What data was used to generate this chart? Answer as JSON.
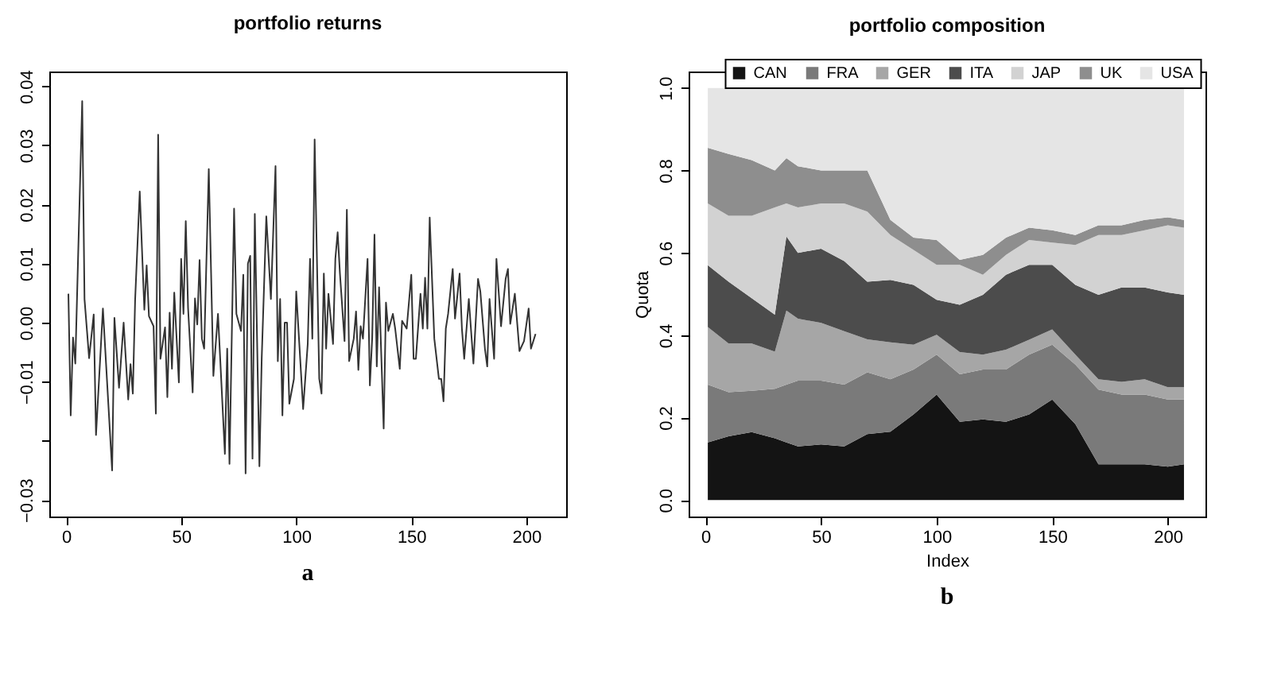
{
  "chart_data": [
    {
      "type": "line",
      "title": "portfolio returns",
      "annotations": [
        "a"
      ],
      "legend": false,
      "marker": "none",
      "line_style": "solid",
      "x": [
        1,
        2,
        3,
        4,
        7,
        8,
        10,
        12,
        13,
        16,
        20,
        21,
        23,
        25,
        27,
        28,
        29,
        30,
        32,
        34,
        35,
        36,
        38,
        39,
        40,
        41,
        43,
        44,
        45,
        46,
        47,
        49,
        50,
        51,
        52,
        53,
        55,
        56,
        57,
        58,
        59,
        60,
        62,
        64,
        66,
        69,
        70,
        71,
        73,
        74,
        76,
        77,
        78,
        79,
        80,
        81,
        82,
        84,
        85,
        87,
        89,
        91,
        92,
        93,
        94,
        95,
        96,
        97,
        99,
        100,
        103,
        105,
        106,
        107,
        108,
        110,
        111,
        112,
        113,
        114,
        116,
        117,
        118,
        119,
        121,
        122,
        123,
        125,
        126,
        127,
        128,
        129,
        131,
        132,
        133,
        134,
        135,
        136,
        138,
        139,
        140,
        142,
        143,
        145,
        146,
        148,
        150,
        151,
        152,
        154,
        155,
        156,
        157,
        158,
        160,
        162,
        163,
        164,
        165,
        166,
        168,
        169,
        171,
        172,
        173,
        175,
        177,
        179,
        180,
        182,
        183,
        184,
        186,
        187,
        189,
        191,
        192,
        193,
        195,
        197,
        199,
        201,
        202,
        204
      ],
      "series": [
        {
          "color": "#333333",
          "values": [
            0.0049,
            -0.0157,
            -0.0025,
            -0.0069,
            0.0375,
            0.004,
            -0.006,
            0.0014,
            -0.019,
            0.0024,
            -0.025,
            0.0008,
            -0.011,
            0.0,
            -0.013,
            -0.007,
            -0.012,
            0.0039,
            0.0222,
            0.0022,
            0.0097,
            0.0011,
            -0.0006,
            -0.0154,
            0.0318,
            -0.0061,
            -0.0008,
            -0.0126,
            0.0017,
            -0.0078,
            0.0051,
            -0.0101,
            0.0108,
            0.0015,
            0.0172,
            0.0025,
            -0.0118,
            0.0041,
            -0.0003,
            0.0106,
            -0.0027,
            -0.0044,
            0.026,
            -0.009,
            0.0015,
            -0.0222,
            -0.0044,
            -0.0239,
            0.0193,
            0.0015,
            -0.0014,
            0.0081,
            -0.0255,
            0.01,
            0.0113,
            -0.023,
            0.0184,
            -0.0243,
            -0.0061,
            0.018,
            0.004,
            0.0265,
            -0.0065,
            0.004,
            -0.0157,
            0.0,
            0.0,
            -0.0137,
            -0.0095,
            0.0053,
            -0.0146,
            -0.0036,
            0.0108,
            -0.0027,
            0.031,
            -0.0095,
            -0.012,
            0.0083,
            -0.0044,
            0.0049,
            -0.0036,
            0.0108,
            0.0153,
            0.0083,
            -0.0031,
            0.0191,
            -0.0065,
            -0.0027,
            0.0019,
            -0.008,
            -0.0006,
            -0.0027,
            0.0108,
            -0.0106,
            -0.0027,
            0.0149,
            -0.0074,
            0.006,
            -0.0179,
            0.0034,
            -0.0014,
            0.0015,
            -0.001,
            -0.0078,
            0.0003,
            -0.001,
            0.0081,
            -0.0061,
            -0.0061,
            0.0049,
            -0.001,
            0.0076,
            -0.001,
            0.0178,
            -0.0027,
            -0.0095,
            -0.0095,
            -0.0133,
            -0.001,
            0.0015,
            0.0091,
            0.0007,
            0.0083,
            -0.001,
            -0.0061,
            0.004,
            -0.0069,
            0.0074,
            0.0053,
            -0.0044,
            -0.0074,
            0.004,
            -0.0061,
            0.0108,
            -0.0006,
            0.0074,
            0.0091,
            -0.0002,
            0.0049,
            -0.0048,
            -0.0031,
            0.0024,
            -0.0044,
            -0.0019
          ]
        }
      ],
      "xlim": [
        -7.3,
        217.3
      ],
      "xticks": [
        0,
        50,
        100,
        150,
        200
      ],
      "ylim": [
        -0.0328,
        0.0425
      ],
      "yticks": [
        -0.03,
        {
          "value": -0.02,
          "label": null
        },
        -0.01,
        {
          "value": 0,
          "label": "0.00"
        },
        0.01,
        0.02,
        0.03,
        0.04
      ]
    },
    {
      "type": "area",
      "stacked": true,
      "title": "portfolio composition",
      "xlabel": "Index",
      "ylabel": "Quota",
      "annotations": [
        "b"
      ],
      "legend": "top",
      "x": [
        1,
        10,
        20,
        30,
        35,
        40,
        50,
        60,
        70,
        80,
        90,
        100,
        110,
        120,
        130,
        140,
        150,
        160,
        170,
        180,
        190,
        200,
        207
      ],
      "series": [
        {
          "name": "CAN",
          "color": "#141414",
          "values": [
            0.14,
            0.155,
            0.165,
            0.15,
            0.14,
            0.13,
            0.135,
            0.13,
            0.16,
            0.166,
            0.208,
            0.256,
            0.19,
            0.196,
            0.19,
            0.208,
            0.244,
            0.184,
            0.087,
            0.087,
            0.087,
            0.081,
            0.087
          ]
        },
        {
          "name": "FRA",
          "color": "#7a7a7a",
          "values": [
            0.14,
            0.107,
            0.1,
            0.12,
            0.14,
            0.16,
            0.155,
            0.15,
            0.15,
            0.127,
            0.109,
            0.097,
            0.115,
            0.121,
            0.127,
            0.145,
            0.133,
            0.145,
            0.181,
            0.169,
            0.169,
            0.163,
            0.157
          ]
        },
        {
          "name": "GER",
          "color": "#a6a6a6",
          "values": [
            0.14,
            0.118,
            0.115,
            0.09,
            0.18,
            0.15,
            0.14,
            0.13,
            0.08,
            0.09,
            0.06,
            0.048,
            0.054,
            0.036,
            0.048,
            0.036,
            0.037,
            0.024,
            0.025,
            0.031,
            0.037,
            0.03,
            0.03
          ]
        },
        {
          "name": "ITA",
          "color": "#4c4c4c",
          "values": [
            0.15,
            0.15,
            0.11,
            0.09,
            0.18,
            0.16,
            0.18,
            0.17,
            0.14,
            0.151,
            0.145,
            0.085,
            0.115,
            0.145,
            0.182,
            0.182,
            0.157,
            0.169,
            0.205,
            0.229,
            0.223,
            0.23,
            0.224
          ]
        },
        {
          "name": "JAP",
          "color": "#d2d2d2",
          "values": [
            0.15,
            0.16,
            0.2,
            0.26,
            0.08,
            0.11,
            0.11,
            0.14,
            0.17,
            0.109,
            0.085,
            0.085,
            0.097,
            0.049,
            0.048,
            0.06,
            0.054,
            0.097,
            0.145,
            0.127,
            0.139,
            0.163,
            0.163
          ]
        },
        {
          "name": "UK",
          "color": "#8e8e8e",
          "values": [
            0.135,
            0.15,
            0.135,
            0.09,
            0.11,
            0.1,
            0.08,
            0.08,
            0.1,
            0.037,
            0.03,
            0.06,
            0.012,
            0.048,
            0.042,
            0.03,
            0.03,
            0.024,
            0.024,
            0.024,
            0.025,
            0.019,
            0.019
          ]
        },
        {
          "name": "USA",
          "color": "#e5e5e5",
          "values": [
            0.145,
            0.16,
            0.175,
            0.2,
            0.17,
            0.19,
            0.2,
            0.2,
            0.2,
            0.32,
            0.363,
            0.369,
            0.417,
            0.405,
            0.363,
            0.339,
            0.345,
            0.357,
            0.333,
            0.333,
            0.32,
            0.314,
            0.32
          ]
        }
      ],
      "xlim": [
        -7.3,
        216.3
      ],
      "xticks": [
        0,
        50,
        100,
        150,
        200
      ],
      "ylim": [
        -0.04,
        1.04
      ],
      "yticks": [
        {
          "value": 0,
          "label": "0.0"
        },
        {
          "value": 0.2,
          "label": "0.2"
        },
        {
          "value": 0.4,
          "label": "0.4"
        },
        {
          "value": 0.6,
          "label": "0.6"
        },
        {
          "value": 0.8,
          "label": "0.8"
        },
        {
          "value": 1,
          "label": "1.0"
        }
      ]
    }
  ]
}
